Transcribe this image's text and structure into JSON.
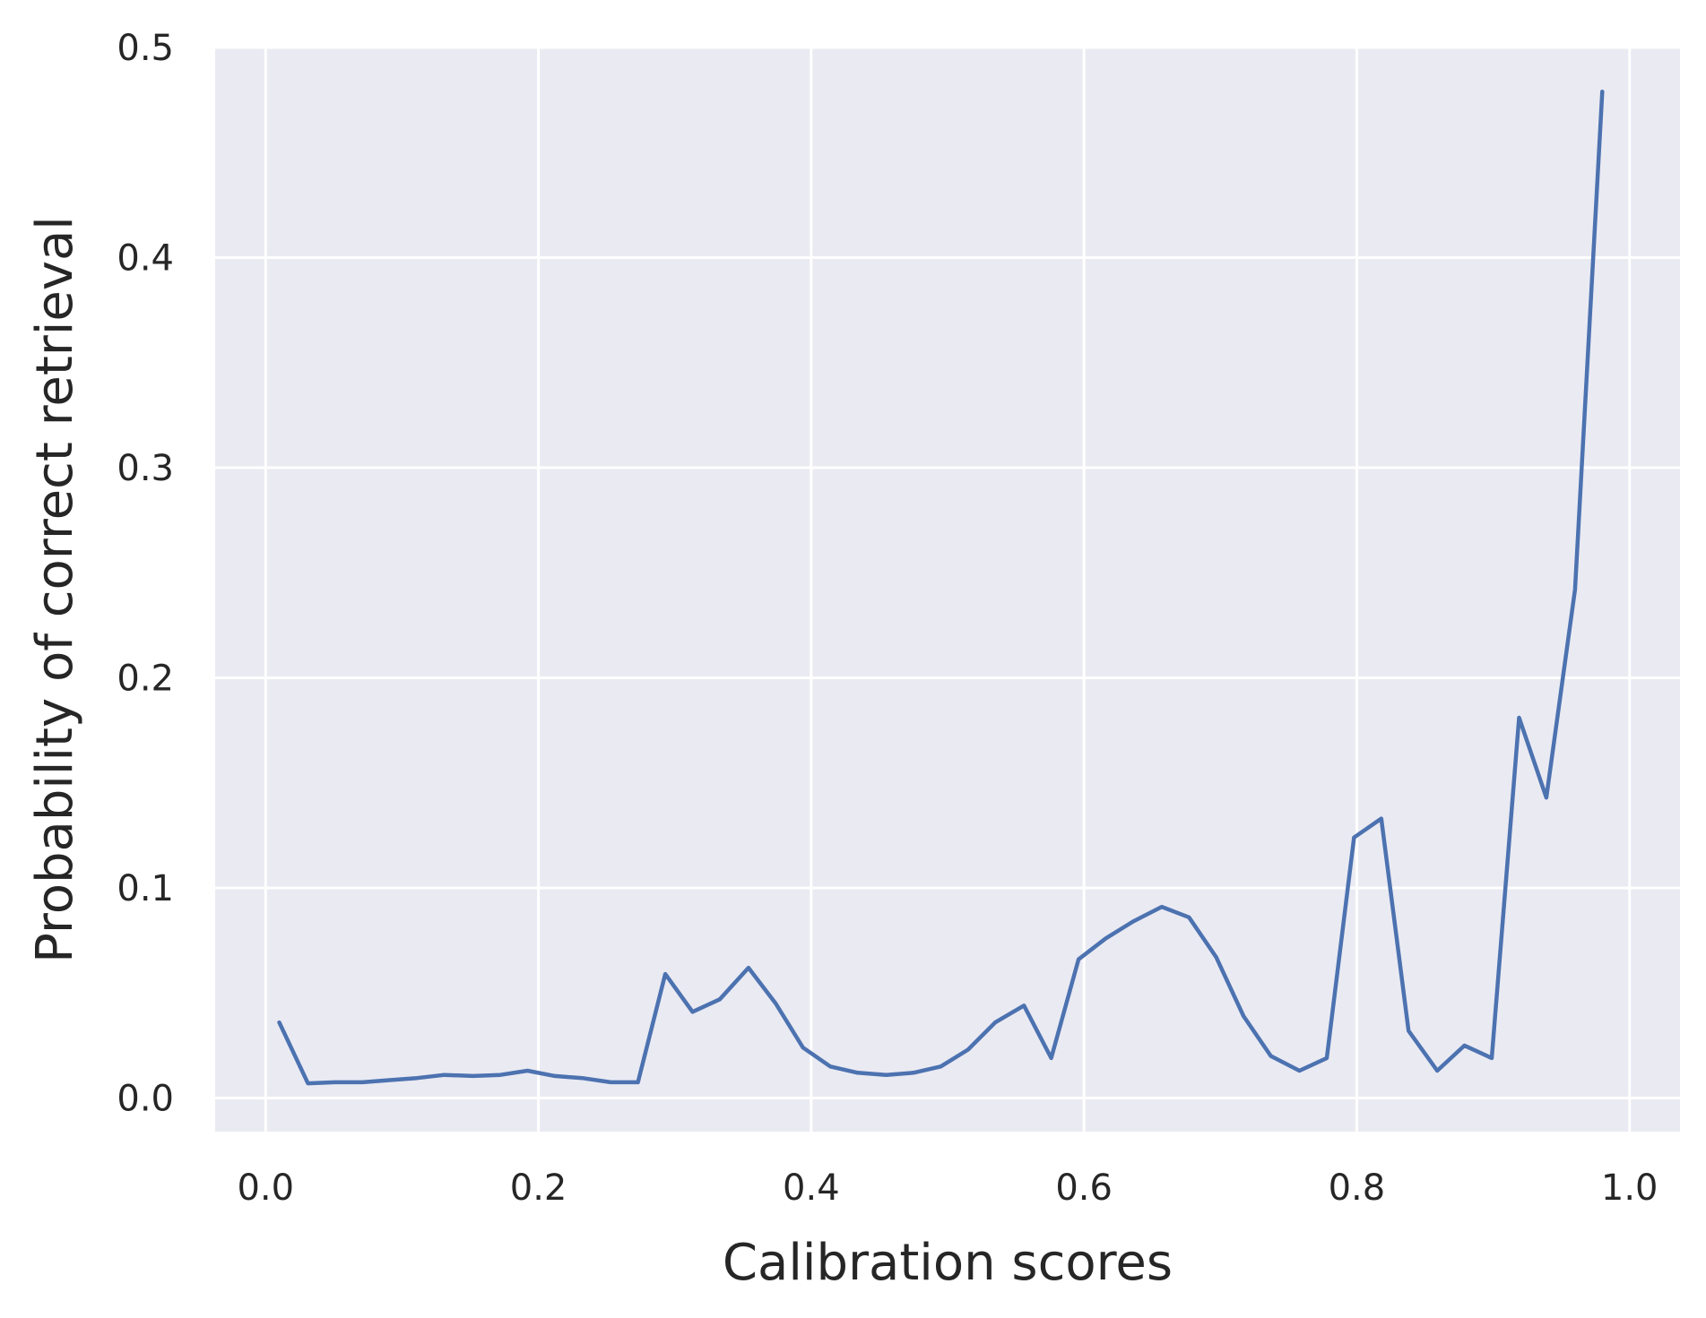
{
  "chart_data": {
    "type": "line",
    "title": "",
    "xlabel": "Calibration scores",
    "ylabel": "Probability of correct retrieval",
    "xlim": [
      -0.037,
      1.037
    ],
    "ylim": [
      -0.016,
      0.5
    ],
    "xticks": [
      0.0,
      0.2,
      0.4,
      0.6,
      0.8,
      1.0
    ],
    "xtick_labels": [
      "0.0",
      "0.2",
      "0.4",
      "0.6",
      "0.8",
      "1.0"
    ],
    "yticks": [
      0.0,
      0.1,
      0.2,
      0.3,
      0.4,
      0.5
    ],
    "ytick_labels": [
      "0.0",
      "0.1",
      "0.2",
      "0.3",
      "0.4",
      "0.5"
    ],
    "grid": true,
    "background": "#eaeaf2",
    "grid_color": "#ffffff",
    "line_color": "#4c72b0",
    "series": [
      {
        "x": [
          0.01,
          0.031,
          0.051,
          0.071,
          0.091,
          0.111,
          0.131,
          0.152,
          0.172,
          0.192,
          0.212,
          0.232,
          0.253,
          0.273,
          0.293,
          0.313,
          0.333,
          0.354,
          0.374,
          0.394,
          0.414,
          0.434,
          0.455,
          0.475,
          0.495,
          0.515,
          0.535,
          0.556,
          0.576,
          0.596,
          0.616,
          0.636,
          0.657,
          0.677,
          0.697,
          0.717,
          0.737,
          0.758,
          0.778,
          0.798,
          0.818,
          0.838,
          0.859,
          0.879,
          0.899,
          0.919,
          0.939,
          0.96,
          0.98
        ],
        "values": [
          0.036,
          0.007,
          0.0075,
          0.0075,
          0.0085,
          0.0095,
          0.011,
          0.0105,
          0.011,
          0.013,
          0.0105,
          0.0095,
          0.0075,
          0.0075,
          0.059,
          0.041,
          0.047,
          0.062,
          0.045,
          0.024,
          0.015,
          0.012,
          0.011,
          0.012,
          0.015,
          0.023,
          0.036,
          0.044,
          0.019,
          0.066,
          0.076,
          0.084,
          0.091,
          0.086,
          0.067,
          0.039,
          0.02,
          0.013,
          0.019,
          0.124,
          0.133,
          0.032,
          0.013,
          0.025,
          0.019,
          0.181,
          0.143,
          0.242,
          0.479
        ]
      }
    ]
  }
}
